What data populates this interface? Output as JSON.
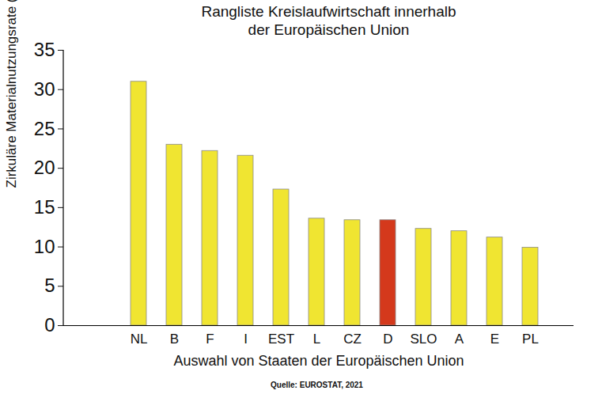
{
  "chart_data": {
    "type": "bar",
    "title": "Rangliste Kreislaufwirtschaft innerhalb\nder Europäischen Union",
    "x_label": "Auswahl von Staaten der Europäischen Union",
    "y_label": "Zirkuläre Materialnutzungsrate (Prozent)",
    "caption": "Quelle: EUROSTAT, 2021",
    "categories": [
      "NL",
      "B",
      "F",
      "I",
      "EST",
      "L",
      "CZ",
      "D",
      "SLO",
      "A",
      "E",
      "PL"
    ],
    "values": [
      31,
      23,
      22.2,
      21.6,
      17.3,
      13.6,
      13.4,
      13.4,
      12.3,
      12.0,
      11.2,
      9.9
    ],
    "colors": [
      "#f0e531",
      "#f0e531",
      "#f0e531",
      "#f0e531",
      "#f0e531",
      "#f0e531",
      "#f0e531",
      "#d4391c",
      "#f0e531",
      "#f0e531",
      "#f0e531",
      "#f0e531"
    ],
    "ylim": [
      0,
      35
    ],
    "yticks": [
      0,
      5,
      10,
      15,
      20,
      25,
      30,
      35
    ],
    "grid": false
  }
}
